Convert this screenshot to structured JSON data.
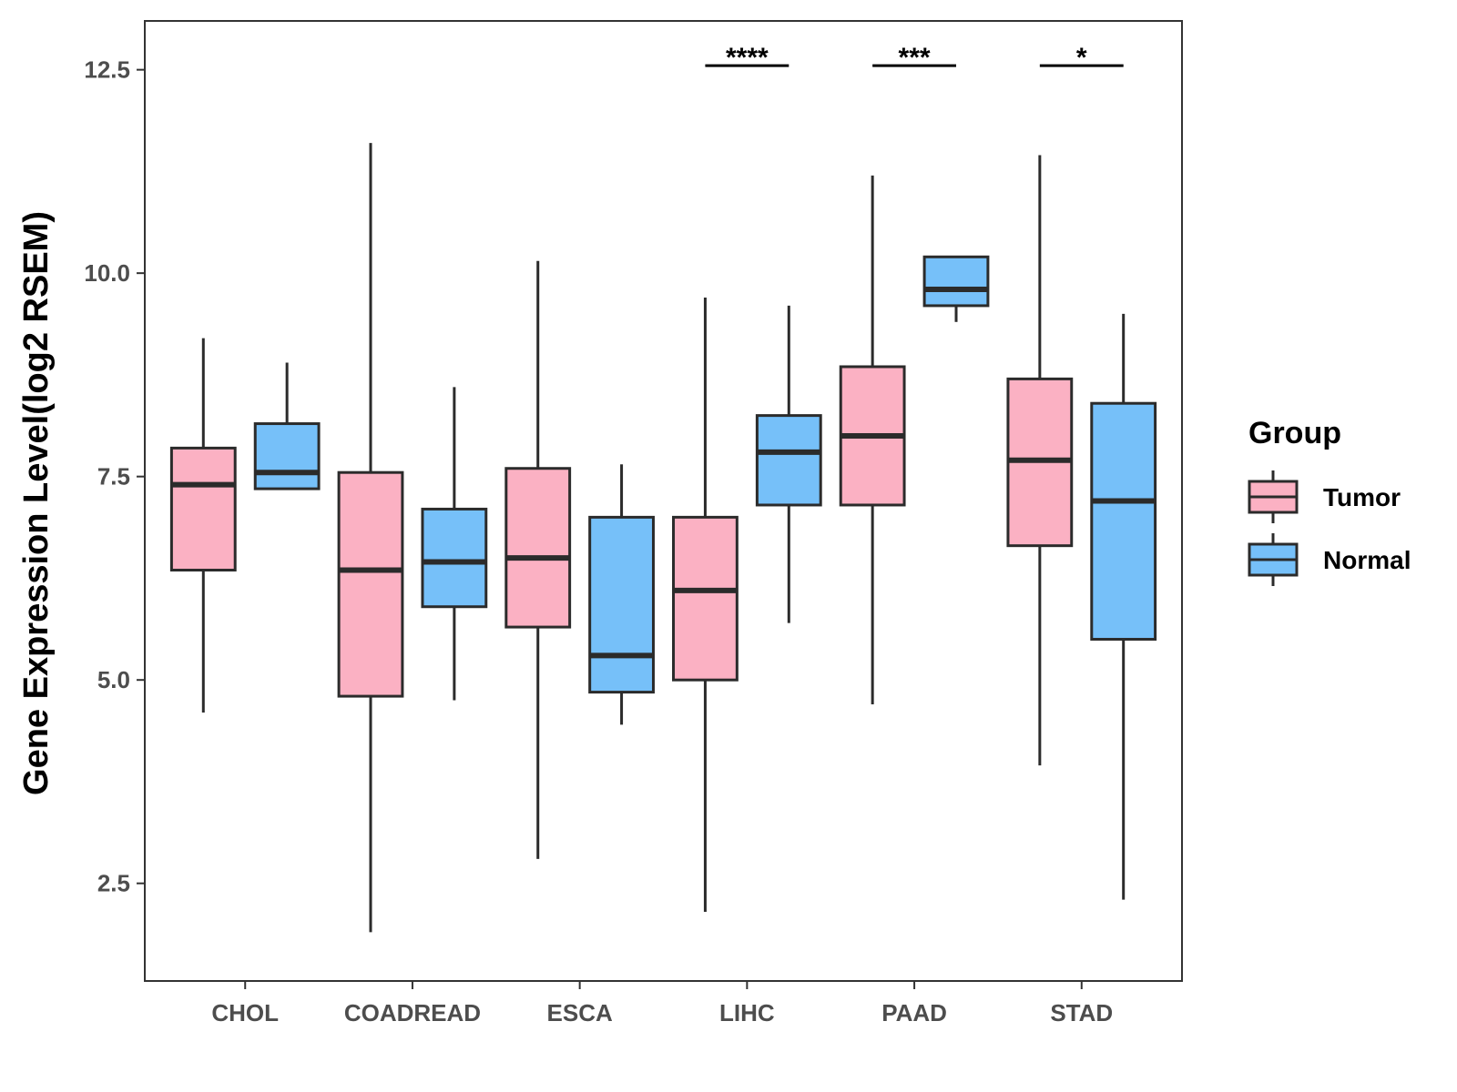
{
  "chart_data": {
    "type": "boxplot",
    "title": "",
    "xlabel": "",
    "ylabel": "Gene Expression Level(log2 RSEM)",
    "ylim": [
      1.3,
      13.1
    ],
    "yticks": [
      2.5,
      5.0,
      7.5,
      10.0,
      12.5
    ],
    "ytick_labels": [
      "2.5",
      "5.0",
      "7.5",
      "10.0",
      "12.5"
    ],
    "categories": [
      "CHOL",
      "COADREAD",
      "ESCA",
      "LIHC",
      "PAAD",
      "STAD"
    ],
    "legend": {
      "title": "Group",
      "position": "right",
      "entries": [
        {
          "name": "Tumor",
          "color": "#fbb1c3"
        },
        {
          "name": "Normal",
          "color": "#76c0f9"
        }
      ]
    },
    "series": [
      {
        "name": "Tumor",
        "color": "#fbb1c3",
        "boxes": [
          {
            "whisker_low": 4.6,
            "q1": 6.35,
            "median": 7.4,
            "q3": 7.85,
            "whisker_high": 9.2
          },
          {
            "whisker_low": 1.9,
            "q1": 4.8,
            "median": 6.35,
            "q3": 7.55,
            "whisker_high": 11.6
          },
          {
            "whisker_low": 2.8,
            "q1": 5.65,
            "median": 6.5,
            "q3": 7.6,
            "whisker_high": 10.15
          },
          {
            "whisker_low": 2.15,
            "q1": 5.0,
            "median": 6.1,
            "q3": 7.0,
            "whisker_high": 9.7
          },
          {
            "whisker_low": 4.7,
            "q1": 7.15,
            "median": 8.0,
            "q3": 8.85,
            "whisker_high": 11.2
          },
          {
            "whisker_low": 3.95,
            "q1": 6.65,
            "median": 7.7,
            "q3": 8.7,
            "whisker_high": 11.45
          }
        ]
      },
      {
        "name": "Normal",
        "color": "#76c0f9",
        "boxes": [
          {
            "whisker_low": 7.35,
            "q1": 7.35,
            "median": 7.55,
            "q3": 8.15,
            "whisker_high": 8.9
          },
          {
            "whisker_low": 4.75,
            "q1": 5.9,
            "median": 6.45,
            "q3": 7.1,
            "whisker_high": 8.6
          },
          {
            "whisker_low": 4.45,
            "q1": 4.85,
            "median": 5.3,
            "q3": 7.0,
            "whisker_high": 7.65
          },
          {
            "whisker_low": 5.7,
            "q1": 7.15,
            "median": 7.8,
            "q3": 8.25,
            "whisker_high": 9.6
          },
          {
            "whisker_low": 9.4,
            "q1": 9.6,
            "median": 9.8,
            "q3": 10.2,
            "whisker_high": 10.2
          },
          {
            "whisker_low": 2.3,
            "q1": 5.5,
            "median": 7.2,
            "q3": 8.4,
            "whisker_high": 9.5
          }
        ]
      }
    ],
    "significance": [
      {
        "category": "LIHC",
        "label": "****",
        "y": 12.55
      },
      {
        "category": "PAAD",
        "label": "***",
        "y": 12.55
      },
      {
        "category": "STAD",
        "label": "*",
        "y": 12.55
      }
    ]
  }
}
